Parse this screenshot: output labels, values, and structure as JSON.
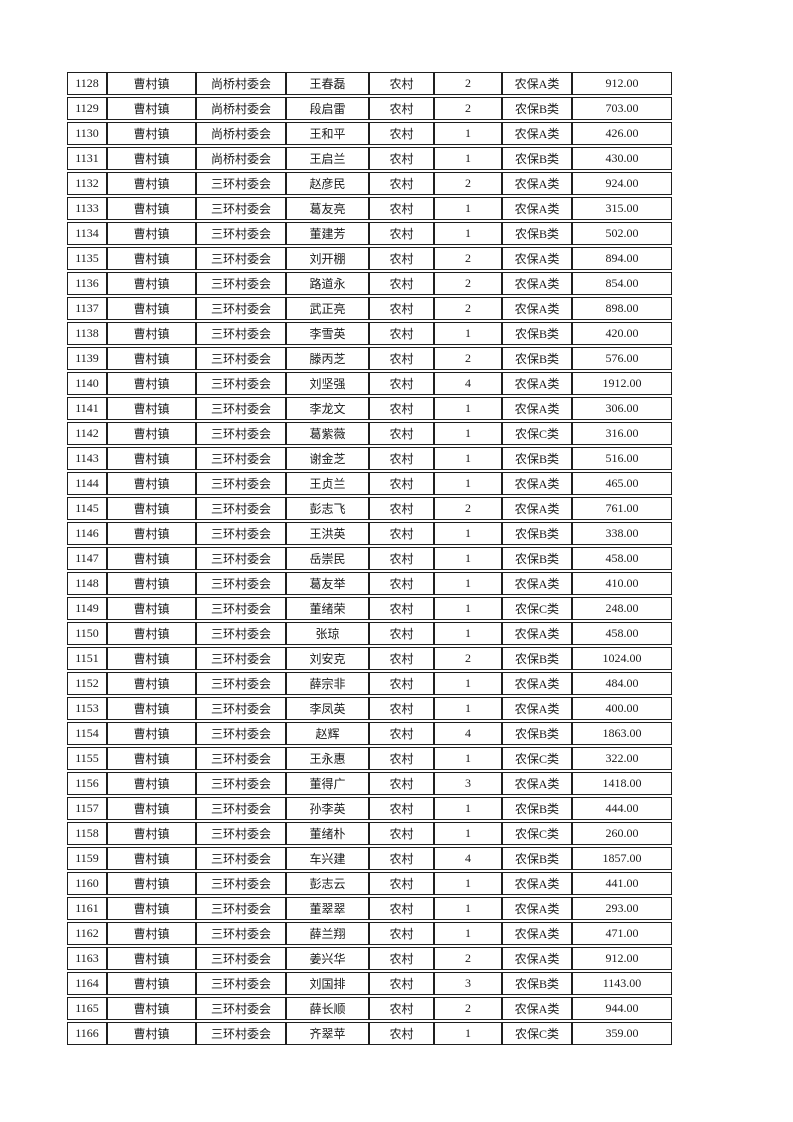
{
  "colors": {
    "background": "#ffffff",
    "text": "#1a1a1a",
    "border": "#1f1f1f"
  },
  "table": {
    "column_names": [
      "seq",
      "town",
      "village",
      "name",
      "residence",
      "persons",
      "category",
      "amount"
    ],
    "rows": [
      [
        "1128",
        "曹村镇",
        "尚桥村委会",
        "王春磊",
        "农村",
        "2",
        "农保A类",
        "912.00"
      ],
      [
        "1129",
        "曹村镇",
        "尚桥村委会",
        "段启雷",
        "农村",
        "2",
        "农保B类",
        "703.00"
      ],
      [
        "1130",
        "曹村镇",
        "尚桥村委会",
        "王和平",
        "农村",
        "1",
        "农保A类",
        "426.00"
      ],
      [
        "1131",
        "曹村镇",
        "尚桥村委会",
        "王启兰",
        "农村",
        "1",
        "农保B类",
        "430.00"
      ],
      [
        "1132",
        "曹村镇",
        "三环村委会",
        "赵彦民",
        "农村",
        "2",
        "农保A类",
        "924.00"
      ],
      [
        "1133",
        "曹村镇",
        "三环村委会",
        "葛友亮",
        "农村",
        "1",
        "农保A类",
        "315.00"
      ],
      [
        "1134",
        "曹村镇",
        "三环村委会",
        "董建芳",
        "农村",
        "1",
        "农保B类",
        "502.00"
      ],
      [
        "1135",
        "曹村镇",
        "三环村委会",
        "刘开棚",
        "农村",
        "2",
        "农保A类",
        "894.00"
      ],
      [
        "1136",
        "曹村镇",
        "三环村委会",
        "路道永",
        "农村",
        "2",
        "农保A类",
        "854.00"
      ],
      [
        "1137",
        "曹村镇",
        "三环村委会",
        "武正亮",
        "农村",
        "2",
        "农保A类",
        "898.00"
      ],
      [
        "1138",
        "曹村镇",
        "三环村委会",
        "李雪英",
        "农村",
        "1",
        "农保B类",
        "420.00"
      ],
      [
        "1139",
        "曹村镇",
        "三环村委会",
        "滕丙芝",
        "农村",
        "2",
        "农保B类",
        "576.00"
      ],
      [
        "1140",
        "曹村镇",
        "三环村委会",
        "刘坚强",
        "农村",
        "4",
        "农保A类",
        "1912.00"
      ],
      [
        "1141",
        "曹村镇",
        "三环村委会",
        "李龙文",
        "农村",
        "1",
        "农保A类",
        "306.00"
      ],
      [
        "1142",
        "曹村镇",
        "三环村委会",
        "葛紫薇",
        "农村",
        "1",
        "农保C类",
        "316.00"
      ],
      [
        "1143",
        "曹村镇",
        "三环村委会",
        "谢金芝",
        "农村",
        "1",
        "农保B类",
        "516.00"
      ],
      [
        "1144",
        "曹村镇",
        "三环村委会",
        "王贞兰",
        "农村",
        "1",
        "农保A类",
        "465.00"
      ],
      [
        "1145",
        "曹村镇",
        "三环村委会",
        "彭志飞",
        "农村",
        "2",
        "农保A类",
        "761.00"
      ],
      [
        "1146",
        "曹村镇",
        "三环村委会",
        "王洪英",
        "农村",
        "1",
        "农保B类",
        "338.00"
      ],
      [
        "1147",
        "曹村镇",
        "三环村委会",
        "岳崇民",
        "农村",
        "1",
        "农保B类",
        "458.00"
      ],
      [
        "1148",
        "曹村镇",
        "三环村委会",
        "葛友举",
        "农村",
        "1",
        "农保A类",
        "410.00"
      ],
      [
        "1149",
        "曹村镇",
        "三环村委会",
        "董绪荣",
        "农村",
        "1",
        "农保C类",
        "248.00"
      ],
      [
        "1150",
        "曹村镇",
        "三环村委会",
        "张琼",
        "农村",
        "1",
        "农保A类",
        "458.00"
      ],
      [
        "1151",
        "曹村镇",
        "三环村委会",
        "刘安克",
        "农村",
        "2",
        "农保B类",
        "1024.00"
      ],
      [
        "1152",
        "曹村镇",
        "三环村委会",
        "薛宗非",
        "农村",
        "1",
        "农保A类",
        "484.00"
      ],
      [
        "1153",
        "曹村镇",
        "三环村委会",
        "李凤英",
        "农村",
        "1",
        "农保A类",
        "400.00"
      ],
      [
        "1154",
        "曹村镇",
        "三环村委会",
        "赵辉",
        "农村",
        "4",
        "农保B类",
        "1863.00"
      ],
      [
        "1155",
        "曹村镇",
        "三环村委会",
        "王永惠",
        "农村",
        "1",
        "农保C类",
        "322.00"
      ],
      [
        "1156",
        "曹村镇",
        "三环村委会",
        "董得广",
        "农村",
        "3",
        "农保A类",
        "1418.00"
      ],
      [
        "1157",
        "曹村镇",
        "三环村委会",
        "孙李英",
        "农村",
        "1",
        "农保B类",
        "444.00"
      ],
      [
        "1158",
        "曹村镇",
        "三环村委会",
        "董绪朴",
        "农村",
        "1",
        "农保C类",
        "260.00"
      ],
      [
        "1159",
        "曹村镇",
        "三环村委会",
        "车兴建",
        "农村",
        "4",
        "农保B类",
        "1857.00"
      ],
      [
        "1160",
        "曹村镇",
        "三环村委会",
        "彭志云",
        "农村",
        "1",
        "农保A类",
        "441.00"
      ],
      [
        "1161",
        "曹村镇",
        "三环村委会",
        "董翠翠",
        "农村",
        "1",
        "农保A类",
        "293.00"
      ],
      [
        "1162",
        "曹村镇",
        "三环村委会",
        "薛兰翔",
        "农村",
        "1",
        "农保A类",
        "471.00"
      ],
      [
        "1163",
        "曹村镇",
        "三环村委会",
        "姜兴华",
        "农村",
        "2",
        "农保A类",
        "912.00"
      ],
      [
        "1164",
        "曹村镇",
        "三环村委会",
        "刘国排",
        "农村",
        "3",
        "农保B类",
        "1143.00"
      ],
      [
        "1165",
        "曹村镇",
        "三环村委会",
        "薛长顺",
        "农村",
        "2",
        "农保A类",
        "944.00"
      ],
      [
        "1166",
        "曹村镇",
        "三环村委会",
        "齐翠苹",
        "农村",
        "1",
        "农保C类",
        "359.00"
      ]
    ]
  }
}
